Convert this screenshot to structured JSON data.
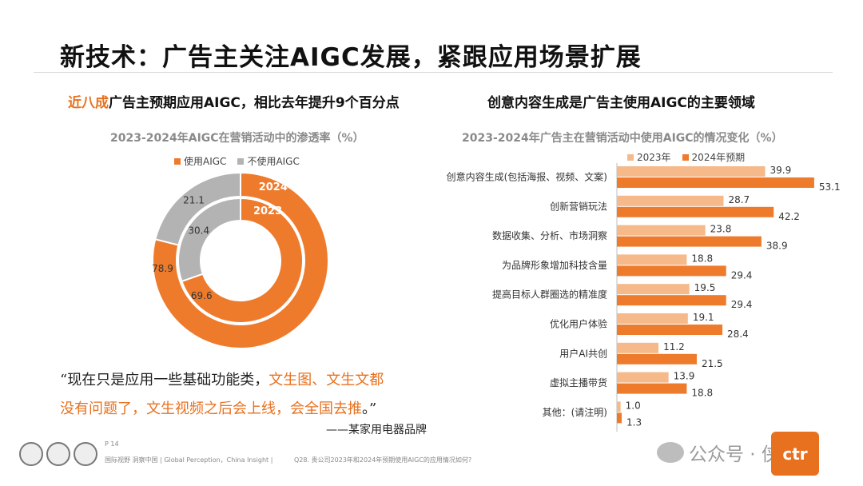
{
  "page": {
    "title": "新技术：广告主关注AIGC发展，紧跟应用场景扩展",
    "left_subtitle_highlight": "近八成",
    "left_subtitle_rest": "广告主预期应用AIGC，相比去年提升9个百分点",
    "right_subtitle": "创意内容生成是广告主使用AIGC的主要领域",
    "quote_line1_plain": "“现在只是应用一些基础功能类，",
    "quote_line1_hl": "文生图、文生文都",
    "quote_line2_hl": "没有问题了，文生视频之后会上线，会全国去推",
    "quote_line2_tail": "。”",
    "attribution": "——某家用电器品牌",
    "page_number": "P 14",
    "footer_text": "国际视野  洞察中国 |  Global Perception，China Insight  |",
    "footer_question": "Q28. 贵公司2023年和2024年预期使用AIGC的应用情况如何?",
    "watermark": "公众号 · 侠说",
    "logo_text": "ctr"
  },
  "colors": {
    "orange": "#ee7b2c",
    "light_orange": "#f5b98a",
    "gray": "#b3b3b3",
    "highlight": "#e8711f"
  },
  "chart_data": [
    {
      "type": "pie",
      "subtype": "donut",
      "title": "2023-2024年AIGC在营销活动中的渗透率（%）",
      "legend": [
        "使用AIGC",
        "不使用AIGC"
      ],
      "legend_placement": "top",
      "rings": [
        {
          "name": "2024",
          "values": [
            78.9,
            21.1
          ]
        },
        {
          "name": "2023",
          "values": [
            69.6,
            30.4
          ]
        }
      ]
    },
    {
      "type": "bar",
      "orientation": "horizontal",
      "title": "2023-2024年广告主在营销活动中使用AIGC的情况变化（%）",
      "legend_placement": "top",
      "categories": [
        "创意内容生成(包括海报、视频、文案)",
        "创新营销玩法",
        "数据收集、分析、市场洞察",
        "为品牌形象增加科技含量",
        "提高目标人群圈选的精准度",
        "优化用户体验",
        "用户AI共创",
        "虚拟主播带货",
        "其他：(请注明)"
      ],
      "series": [
        {
          "name": "2023年",
          "values": [
            39.9,
            28.7,
            23.8,
            18.8,
            19.5,
            19.1,
            11.2,
            13.9,
            1.0
          ]
        },
        {
          "name": "2024年预期",
          "values": [
            53.1,
            42.2,
            38.9,
            29.4,
            29.4,
            28.4,
            21.5,
            18.8,
            1.3
          ]
        }
      ]
    }
  ]
}
